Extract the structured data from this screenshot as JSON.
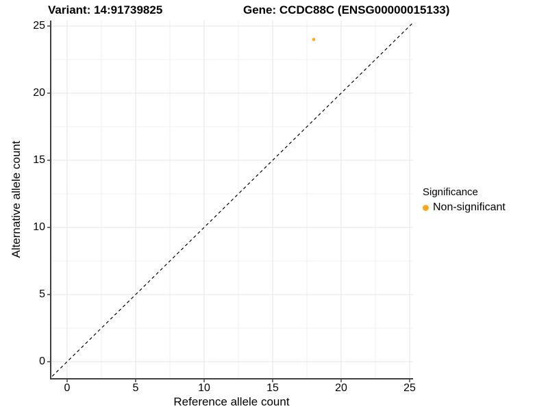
{
  "chart_data": {
    "type": "scatter",
    "title_left": "Variant: 14:91739825",
    "title_right": "Gene: CCDC88C (ENSG00000015133)",
    "xlabel": "Reference allele count",
    "ylabel": "Alternative allele count",
    "x_ticks": [
      0,
      5,
      10,
      15,
      20,
      25
    ],
    "y_ticks": [
      0,
      5,
      10,
      15,
      20,
      25
    ],
    "x_minor_ticks": [
      2.5,
      7.5,
      12.5,
      17.5,
      22.5
    ],
    "y_minor_ticks": [
      2.5,
      7.5,
      12.5,
      17.5,
      22.5
    ],
    "xlim": [
      -1.2,
      25.25
    ],
    "ylim": [
      -1.28,
      25.41
    ],
    "grid": true,
    "identity_line": {
      "slope": 1,
      "intercept": 0,
      "style": "dashed",
      "color": "#000000"
    },
    "series": [
      {
        "name": "Non-significant",
        "color": "#FFA41E",
        "points": [
          {
            "x": 18,
            "y": 24
          }
        ]
      }
    ],
    "legend": {
      "position": "right",
      "title": "Significance",
      "entries": [
        {
          "label": "Non-significant",
          "color": "#FFA41E"
        }
      ]
    },
    "colors": {
      "grid_major": "#E6E6E6",
      "grid_minor": "#F2F2F2",
      "axis_line": "#404040",
      "text": "#000000",
      "background": "#FFFFFF"
    }
  }
}
